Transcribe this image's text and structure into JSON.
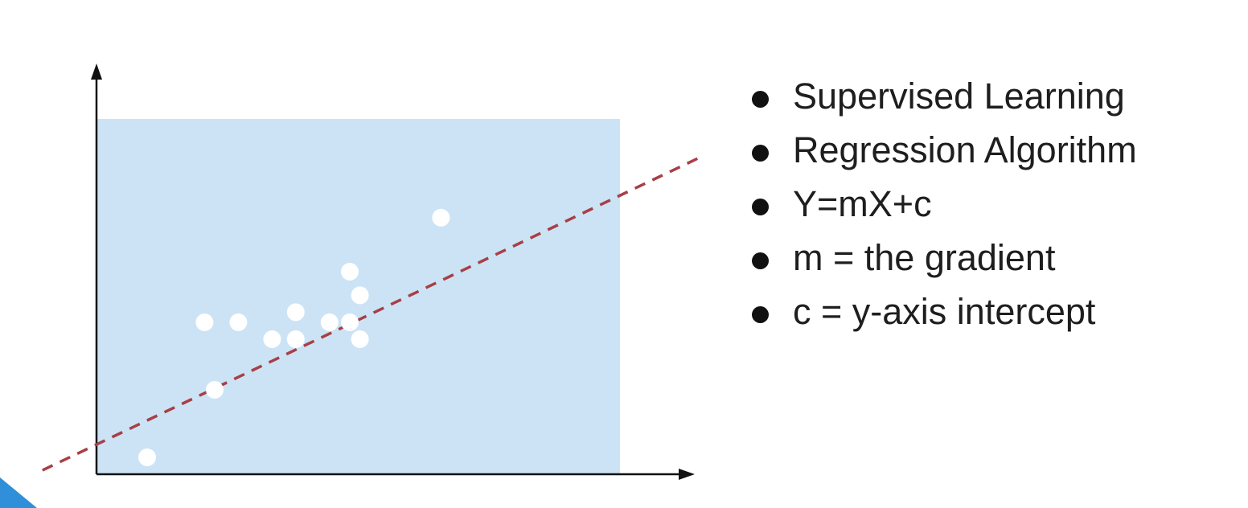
{
  "diagram": {
    "type": "scatter",
    "background_color": "#cce3f5",
    "point_color": "#ffffff",
    "trend_line_color": "#a83f46",
    "axis_color": "#111111",
    "points": [
      [
        1.5,
        0.5
      ],
      [
        3.5,
        2.5
      ],
      [
        3.2,
        4.5
      ],
      [
        4.2,
        4.5
      ],
      [
        5.2,
        4.0
      ],
      [
        5.9,
        4.0
      ],
      [
        5.9,
        4.8
      ],
      [
        6.9,
        4.5
      ],
      [
        7.5,
        6.0
      ],
      [
        7.5,
        4.5
      ],
      [
        7.8,
        5.3
      ],
      [
        7.8,
        4.0
      ],
      [
        10.2,
        7.6
      ]
    ],
    "trend_line": {
      "slope": 0.476,
      "intercept": 0.88,
      "style": "dashed"
    }
  },
  "bullets": {
    "bullet_color": "#111111",
    "items": [
      "Supervised Learning",
      "Regression Algorithm",
      "Y=mX+c",
      "m = the gradient",
      "c = y-axis intercept"
    ]
  },
  "accent_color": "#2f8fd8"
}
